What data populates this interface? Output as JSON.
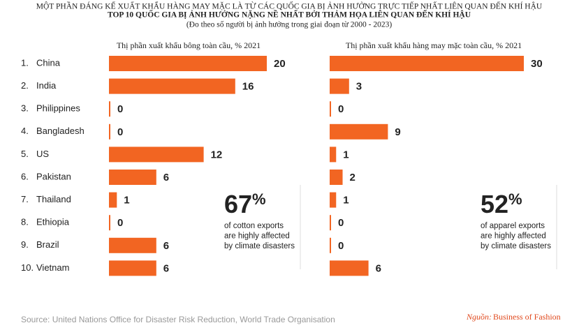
{
  "header": {
    "title_lines": [
      "MỘT PHẦN ĐÁNG KỂ XUẤT KHẨU HÀNG MAY MẶC LÀ TỪ CÁC QUỐC GIA BỊ ẢNH HƯỞNG TRỰC TIẾP NHẤT LIÊN QUAN ĐẾN KHÍ HẬU",
      "TOP 10 QUỐC GIA BỊ ẢNH HƯỞNG NẶNG NỀ NHẤT BỞI THẢM HỌA LIÊN QUAN ĐẾN KHÍ HẬU",
      "(Đo theo số người bị ảnh hưởng trong giai đoạn từ 2000 - 2023)"
    ]
  },
  "ranks": [
    "1.",
    "2.",
    "3.",
    "4.",
    "5.",
    "6.",
    "7.",
    "8.",
    "9.",
    "10."
  ],
  "chart_data": [
    {
      "type": "bar",
      "orientation": "horizontal",
      "title": "Thị phần xuất khẩu bông toàn cầu, % 2021",
      "categories": [
        "China",
        "India",
        "Philippines",
        "Bangladesh",
        "US",
        "Pakistan",
        "Thailand",
        "Ethiopia",
        "Brazil",
        "Vietnam"
      ],
      "values": [
        20,
        16,
        0,
        0,
        12,
        6,
        1,
        0,
        6,
        6
      ],
      "color": "#f26522",
      "xlim": [
        0,
        20
      ],
      "stat_number": "67",
      "stat_unit": "%",
      "stat_text": [
        "of cotton exports",
        "are highly affected",
        "by climate disasters"
      ]
    },
    {
      "type": "bar",
      "orientation": "horizontal",
      "title": "Thị phần xuất khẩu hàng may mặc toàn cầu, % 2021",
      "values": [
        30,
        3,
        0,
        9,
        1,
        2,
        1,
        0,
        0,
        6
      ],
      "color": "#f26522",
      "xlim": [
        0,
        30
      ],
      "stat_number": "52",
      "stat_unit": "%",
      "stat_text": [
        "of apparel exports",
        "are highly affected",
        "by climate disasters"
      ]
    }
  ],
  "footer": {
    "source": "Source: United Nations Office for Disaster Risk Reduction, World Trade Organisation",
    "credit_label": "Nguồn:",
    "credit": "Business of Fashion"
  }
}
